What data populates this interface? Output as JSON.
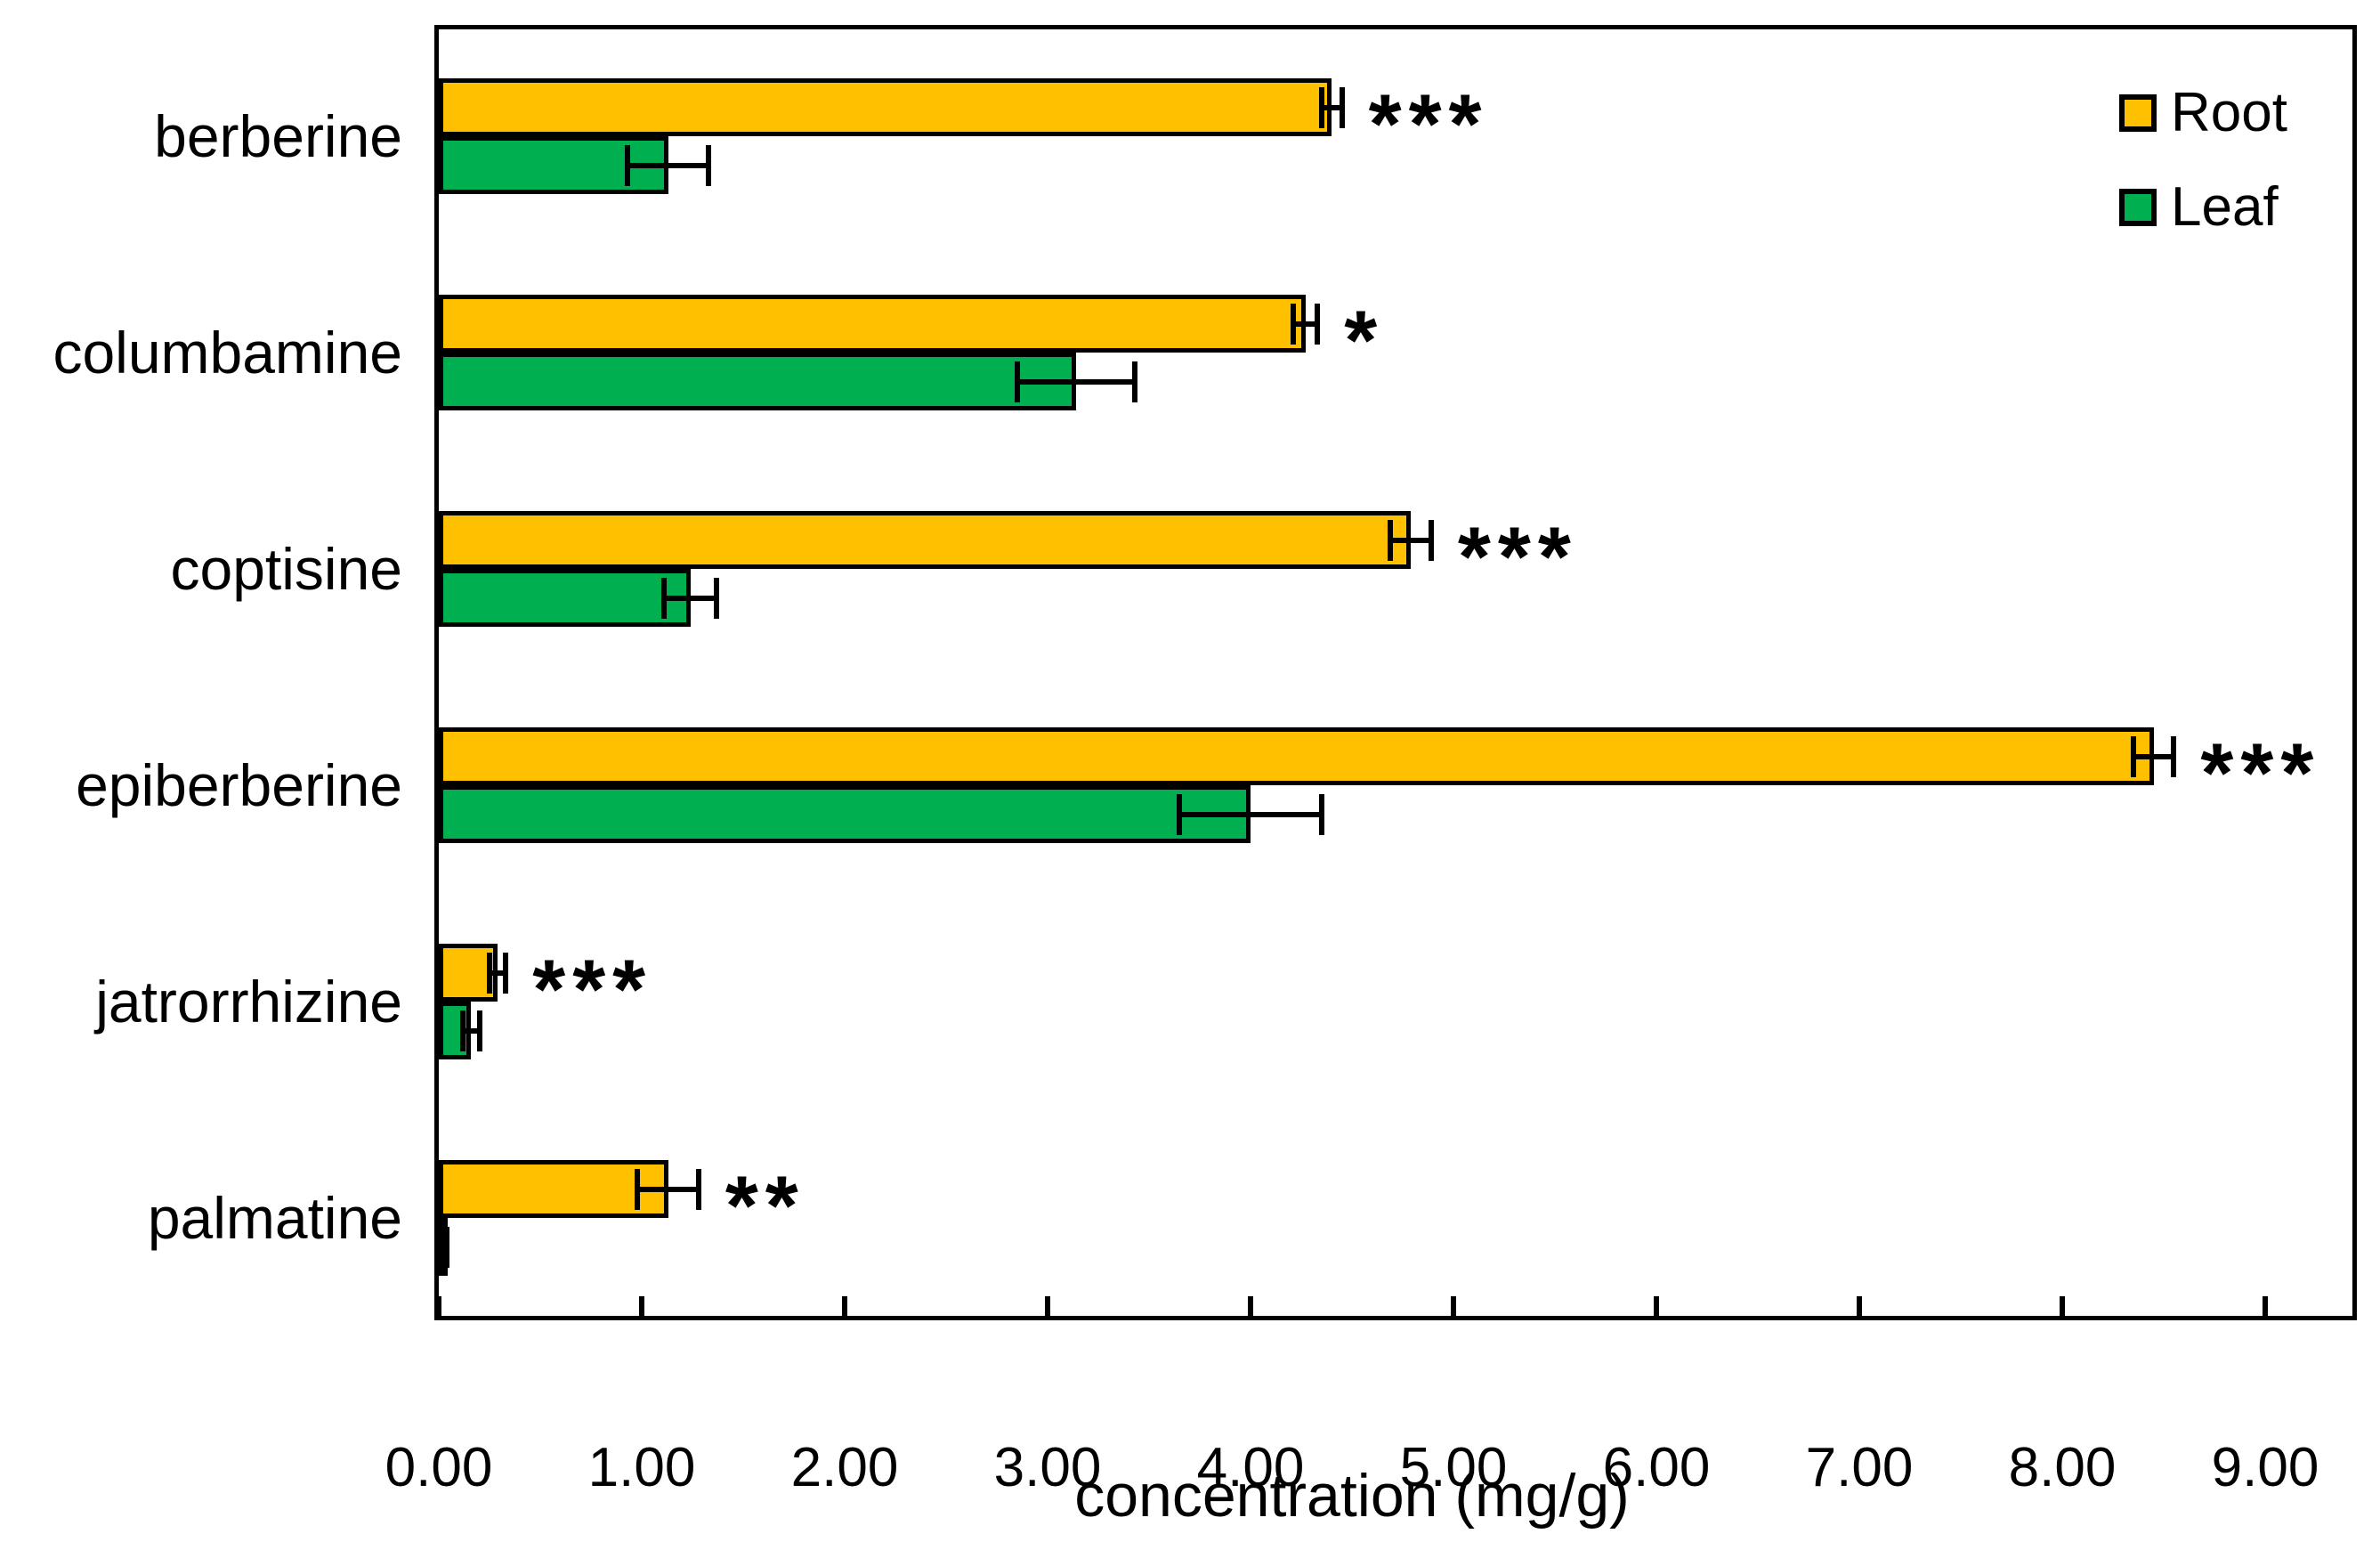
{
  "figure": {
    "background": "#ffffff",
    "xlabel": "concentration (mg/g)"
  },
  "legend": {
    "position": "top-right",
    "items": [
      {
        "label": "Root",
        "color": "#FFC000"
      },
      {
        "label": "Leaf",
        "color": "#00B050"
      }
    ]
  },
  "chart_data": {
    "type": "bar",
    "orientation": "horizontal",
    "title": "",
    "xlabel": "concentration (mg/g)",
    "ylabel": "",
    "categories": [
      "berberine",
      "columbamine",
      "coptisine",
      "epiberberine",
      "jatrorrhizine",
      "palmatine"
    ],
    "series": [
      {
        "name": "Root",
        "color": "#FFC000",
        "values": [
          4.4,
          4.27,
          4.79,
          8.45,
          0.29,
          1.13
        ],
        "errors": [
          0.05,
          0.06,
          0.1,
          0.1,
          0.04,
          0.15
        ]
      },
      {
        "name": "Leaf",
        "color": "#00B050",
        "values": [
          1.13,
          3.14,
          1.24,
          4.0,
          0.16,
          0.02
        ],
        "errors": [
          0.2,
          0.29,
          0.13,
          0.35,
          0.04,
          0.02
        ]
      }
    ],
    "significance": [
      "***",
      "*",
      "***",
      "***",
      "***",
      "**"
    ],
    "significance_on_series": "Root",
    "error_bars": true,
    "grid": false,
    "xlim": [
      0,
      9.5
    ],
    "xticks": [
      "0.00",
      "1.00",
      "2.00",
      "3.00",
      "4.00",
      "5.00",
      "6.00",
      "7.00",
      "8.00",
      "9.00"
    ],
    "legend_position": "top-right"
  }
}
